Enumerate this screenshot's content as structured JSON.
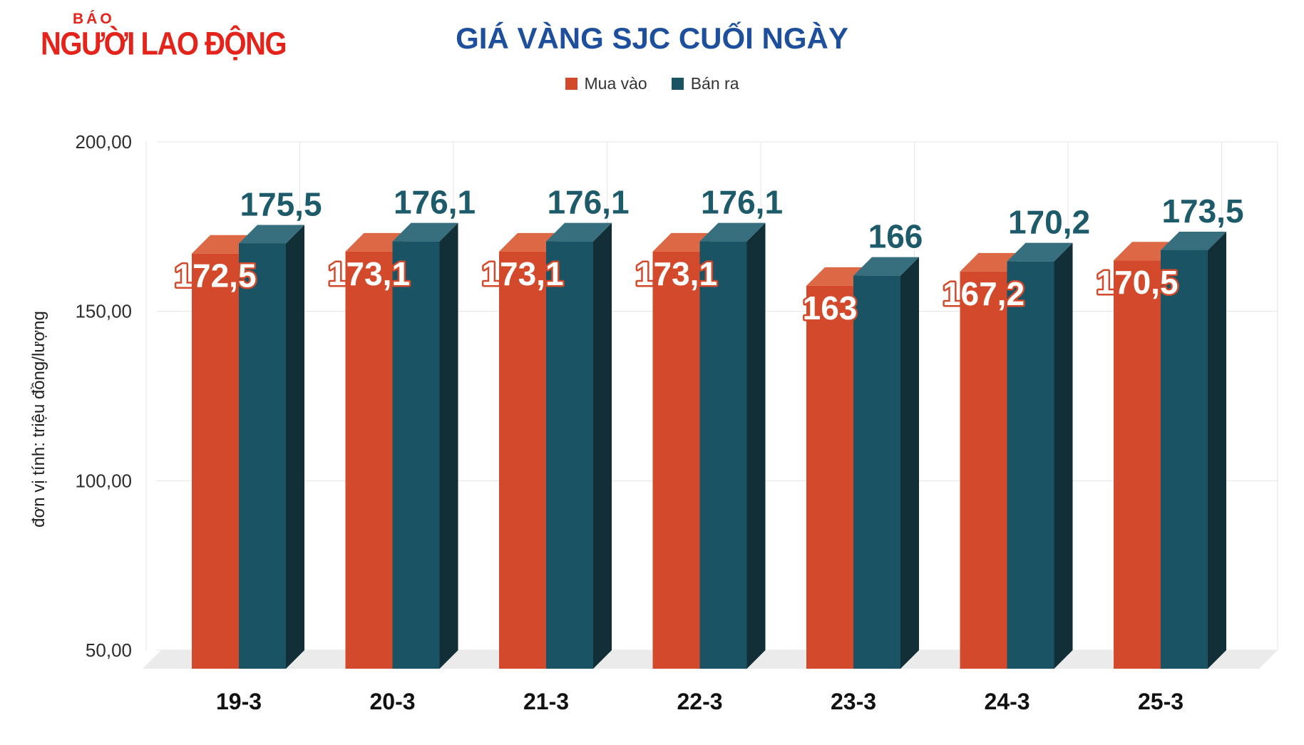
{
  "logo": {
    "small": "BÁO",
    "main": "NGƯỜI LAO ĐỘNG",
    "color": "#e4231b"
  },
  "header": {
    "title": "GIÁ VÀNG SJC CUỐI NGÀY",
    "title_color": "#1d4f9c"
  },
  "chart_data": {
    "type": "bar",
    "style": "3d-grouped-columns",
    "title": "GIÁ VÀNG SJC CUỐI NGÀY",
    "categories": [
      "19-3",
      "20-3",
      "21-3",
      "22-3",
      "23-3",
      "24-3",
      "25-3"
    ],
    "series": [
      {
        "name": "Mua vào",
        "color": "#d24a2b",
        "color_top": "#dd6845",
        "color_side": "#a03c22",
        "label_text_color": "#ffffff",
        "label_outline_color": "#d24a2b",
        "values": [
          172.5,
          173.1,
          173.1,
          173.1,
          163,
          167.2,
          170.5
        ],
        "labels": [
          "172,5",
          "173,1",
          "173,1",
          "173,1",
          "163",
          "167,2",
          "170,5"
        ]
      },
      {
        "name": "Bán ra",
        "color": "#1a5464",
        "color_top": "#376f7e",
        "color_side": "#122f37",
        "label_text_color": "#1d5a6a",
        "label_outline_color": "#ffffff",
        "values": [
          175.5,
          176.1,
          176.1,
          176.1,
          166,
          170.2,
          173.5
        ],
        "labels": [
          "175,5",
          "176,1",
          "176,1",
          "176,1",
          "166",
          "170,2",
          "173,5"
        ]
      }
    ],
    "xlabel": "",
    "ylabel": "đơn vị tính: triệu đồng/lượng",
    "yticks": [
      {
        "label": "200,00",
        "value": 200
      },
      {
        "label": "150,00",
        "value": 150
      },
      {
        "label": "100,00",
        "value": 100
      },
      {
        "label": "50,00",
        "value": 50
      }
    ],
    "ylim": [
      50,
      200
    ],
    "grid": true,
    "grid_color": "#e4e4e4",
    "floor_color": "#ebebeb",
    "axis_text_color": "#2e2e2e",
    "legend_position": "top"
  }
}
